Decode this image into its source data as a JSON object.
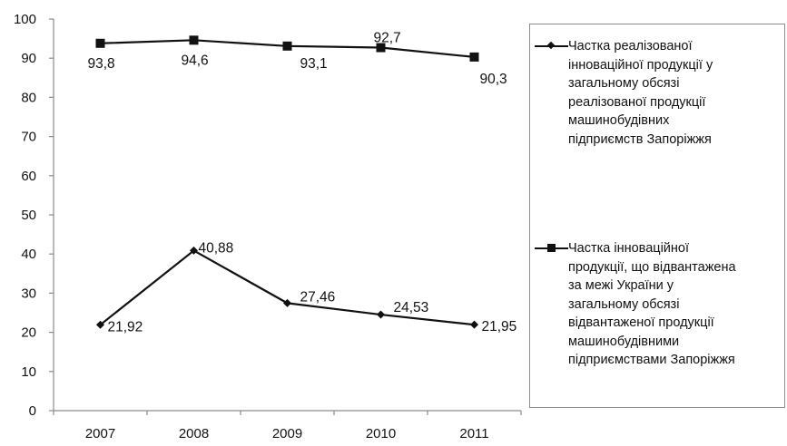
{
  "chart_data": {
    "type": "line",
    "categories": [
      "2007",
      "2008",
      "2009",
      "2010",
      "2011"
    ],
    "ylim": [
      0,
      100
    ],
    "yticks": [
      "0",
      "10",
      "20",
      "30",
      "40",
      "50",
      "60",
      "70",
      "80",
      "90",
      "100"
    ],
    "grid": false,
    "legend_position": "right",
    "series": [
      {
        "name": "Частка реалізованої\nінноваційної продукції у\nзагальному обсязі\nреалізованої продукції\nмашинобудівних\nпідприємств Запоріжжя",
        "marker": "diamond",
        "values": [
          21.92,
          40.88,
          27.46,
          24.53,
          21.95
        ],
        "labels": [
          "21,92",
          "40,88",
          "27,46",
          "24,53",
          "21,95"
        ]
      },
      {
        "name": "Частка інноваційної\nпродукції, що відвантажена\nза межі України у\nзагальному обсязі\nвідвантаженої продукції\nмашинобудівними\nпідприємствами Запоріжжя",
        "marker": "square",
        "values": [
          93.8,
          94.6,
          93.1,
          92.7,
          90.3
        ],
        "labels": [
          "93,8",
          "94,6",
          "93,1",
          "92,7",
          "90,3"
        ]
      }
    ]
  },
  "colors": {
    "line": "#111111",
    "axis": "#8c8c8c",
    "background": "#ffffff"
  }
}
